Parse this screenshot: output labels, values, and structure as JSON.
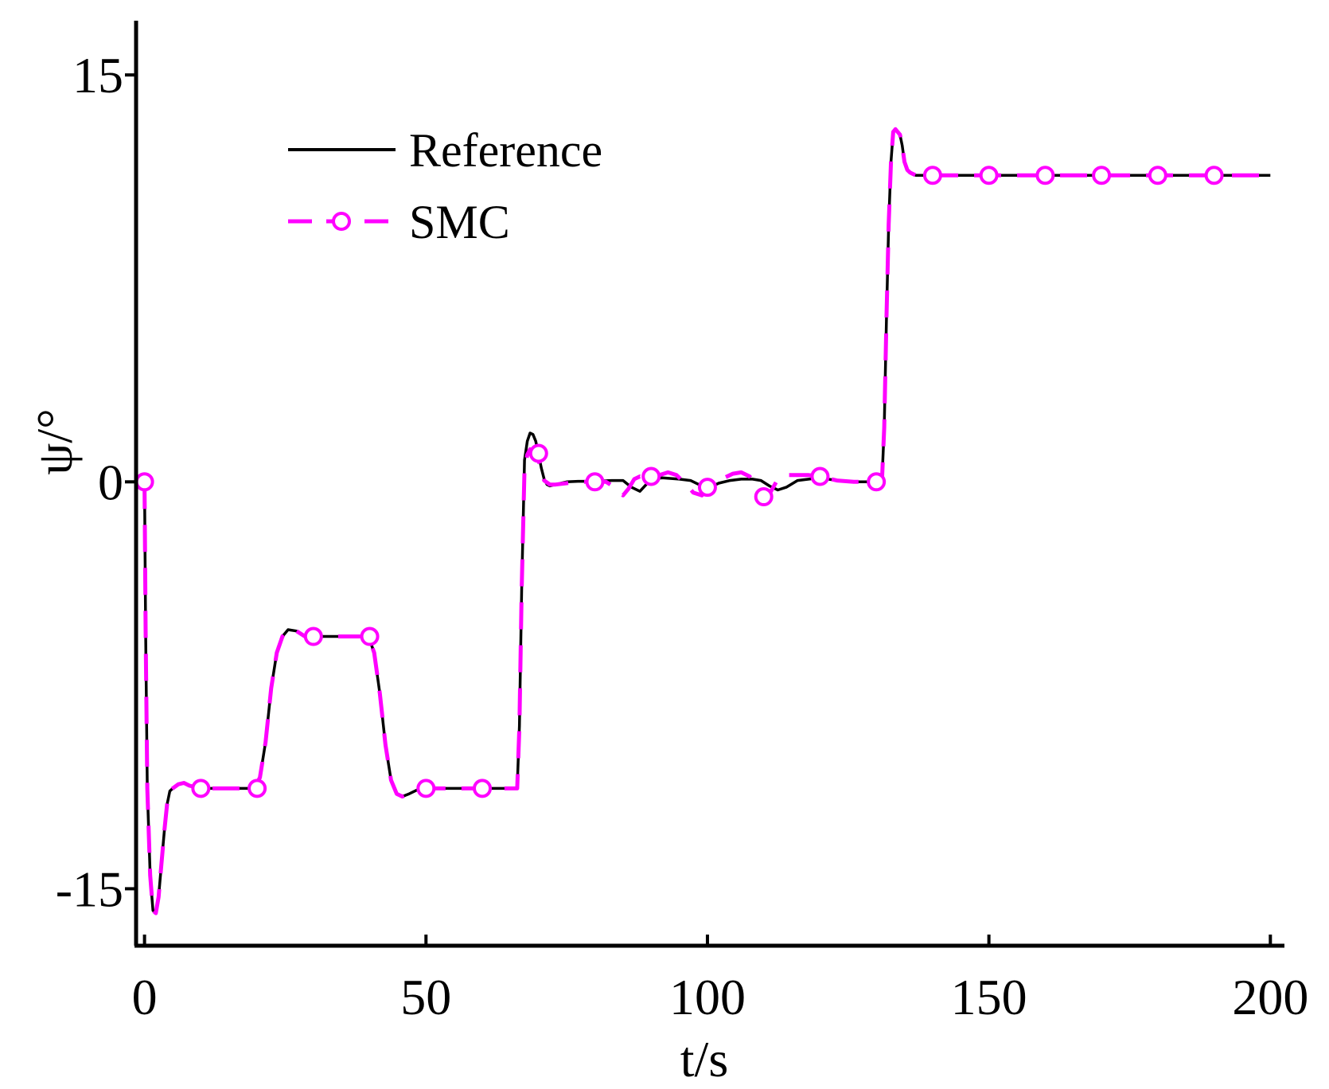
{
  "chart_data": {
    "type": "line",
    "xlabel": "t/s",
    "ylabel": "ψ/°",
    "xlim": [
      -1.5,
      202.5
    ],
    "ylim": [
      -17.1,
      17.0
    ],
    "xticks": [
      0,
      50,
      100,
      150,
      200
    ],
    "xtick_labels": [
      "0",
      "50",
      "100",
      "150",
      "200"
    ],
    "yticks": [
      -15,
      0,
      15
    ],
    "ytick_labels": [
      "-15",
      "0",
      "15"
    ],
    "grid": false,
    "legend_position": "top-left",
    "series": [
      {
        "name": "Reference",
        "color": "#000000",
        "line_style": "solid",
        "x": [
          0,
          0.2,
          0.5,
          1.0,
          1.5,
          2.0,
          2.5,
          3.0,
          3.5,
          4.0,
          4.5,
          5.0,
          6.0,
          7.0,
          8.0,
          9.0,
          10,
          15,
          19.5,
          20.5,
          21.5,
          22.5,
          23.5,
          24.5,
          25.5,
          27,
          28.5,
          30,
          35,
          39.8,
          40.8,
          41.8,
          42.8,
          43.8,
          44.8,
          45.8,
          47,
          48.5,
          50,
          55,
          60,
          64,
          66.2,
          66.6,
          67.0,
          67.5,
          68.0,
          68.5,
          69.0,
          69.5,
          70.0,
          70.5,
          71.0,
          71.5,
          72.0,
          73.0,
          74.0,
          75.0,
          77.0,
          80.0,
          83.0,
          85.0,
          86.5,
          88.0,
          90.0,
          92.0,
          95.0,
          97.0,
          99.0,
          100.5,
          102.0,
          104.0,
          106.0,
          108.0,
          109.5,
          111.0,
          112.5,
          114.0,
          116.0,
          118.0,
          120.0,
          123.0,
          126.0,
          129.0,
          130.5,
          131.0,
          131.4,
          131.8,
          132.2,
          132.6,
          133.0,
          133.4,
          133.8,
          134.2,
          134.6,
          135.0,
          135.5,
          136.0,
          136.5,
          137.0,
          137.5,
          138.0,
          139.0,
          140.0,
          145.0,
          150,
          160,
          170,
          180,
          190,
          200
        ],
        "y": [
          0,
          -5.5,
          -11.3,
          -14.5,
          -15.8,
          -15.9,
          -15.3,
          -14.1,
          -12.9,
          -11.9,
          -11.4,
          -11.3,
          -11.15,
          -11.1,
          -11.2,
          -11.25,
          -11.3,
          -11.3,
          -11.3,
          -10.9,
          -9.6,
          -7.6,
          -6.3,
          -5.7,
          -5.45,
          -5.5,
          -5.7,
          -5.7,
          -5.7,
          -5.7,
          -6.3,
          -7.8,
          -9.7,
          -11.0,
          -11.5,
          -11.6,
          -11.5,
          -11.35,
          -11.3,
          -11.3,
          -11.3,
          -11.3,
          -11.3,
          -9.0,
          -4.0,
          0.8,
          1.5,
          1.8,
          1.75,
          1.5,
          1.0,
          0.5,
          0.1,
          -0.1,
          -0.15,
          -0.1,
          -0.05,
          0,
          0.02,
          0.02,
          0.05,
          0.05,
          -0.2,
          -0.35,
          0.1,
          0.15,
          0.1,
          0.05,
          -0.15,
          -0.2,
          -0.05,
          0.05,
          0.1,
          0.1,
          0.05,
          -0.15,
          -0.3,
          -0.2,
          0.05,
          0.1,
          0.15,
          0.05,
          0,
          0,
          0,
          0,
          2.0,
          6.0,
          9.5,
          11.8,
          12.9,
          13.0,
          12.9,
          12.8,
          12.4,
          11.8,
          11.5,
          11.4,
          11.35,
          11.3,
          11.3,
          11.3,
          11.3,
          11.3,
          11.3,
          11.3,
          11.3,
          11.3,
          11.3,
          11.3,
          11.3
        ]
      },
      {
        "name": "SMC",
        "color": "#ff00ff",
        "line_style": "dashed",
        "marker": "circle-open",
        "x": [
          0,
          0.2,
          0.5,
          1.0,
          1.5,
          2.0,
          2.5,
          3.0,
          3.5,
          4.0,
          4.5,
          5.0,
          6.0,
          7.0,
          8.0,
          9.0,
          10,
          15,
          19.5,
          20.5,
          21.5,
          22.5,
          23.5,
          24.5,
          25.5,
          27,
          28.5,
          30,
          35,
          39.8,
          40.8,
          41.8,
          42.8,
          43.8,
          44.8,
          45.8,
          47,
          48.5,
          50,
          55,
          60,
          64,
          66.2,
          66.6,
          67.0,
          67.5,
          68.0,
          68.5,
          69.0,
          69.5,
          70.0,
          70.5,
          71.0,
          72.0,
          73.0,
          75.0,
          77.0,
          80.0,
          82.0,
          83.5,
          85.0,
          86.0,
          87.0,
          88.0,
          89.0,
          90.0,
          91.5,
          93.0,
          94.5,
          96.0,
          97.5,
          99.0,
          100.0,
          101.5,
          103.0,
          104.5,
          106.0,
          107.5,
          109.0,
          110.0,
          111.0,
          112.5,
          114.0,
          116.0,
          118.0,
          120.0,
          123.0,
          126.0,
          129.0,
          130.5,
          131.0,
          131.4,
          131.8,
          132.2,
          132.6,
          133.0,
          133.4,
          133.8,
          134.2,
          134.6,
          135.0,
          135.5,
          136.0,
          136.5,
          137.0,
          137.5,
          138.0,
          139.0,
          140.0,
          145.0,
          150,
          160,
          170,
          180,
          190,
          200
        ],
        "y": [
          0,
          -5.5,
          -11.3,
          -14.5,
          -15.8,
          -15.9,
          -15.3,
          -14.1,
          -12.9,
          -11.9,
          -11.4,
          -11.3,
          -11.15,
          -11.1,
          -11.2,
          -11.25,
          -11.3,
          -11.3,
          -11.3,
          -10.9,
          -9.6,
          -7.6,
          -6.3,
          -5.7,
          -5.45,
          -5.5,
          -5.7,
          -5.7,
          -5.7,
          -5.7,
          -6.3,
          -7.8,
          -9.7,
          -11.0,
          -11.5,
          -11.6,
          -11.5,
          -11.35,
          -11.3,
          -11.3,
          -11.3,
          -11.3,
          -11.3,
          -9.0,
          -4.0,
          0.5,
          1.0,
          1.2,
          1.15,
          1.05,
          0.8,
          0.4,
          0.05,
          -0.1,
          -0.1,
          -0.05,
          0,
          0,
          0,
          -0.2,
          -0.5,
          -0.25,
          0.1,
          0.2,
          0.15,
          0.2,
          0.25,
          0.35,
          0.25,
          -0.05,
          -0.4,
          -0.5,
          -0.2,
          -0.05,
          0.15,
          0.3,
          0.35,
          0.2,
          -0.25,
          -0.55,
          -0.45,
          0.1,
          0.25,
          0.25,
          0.25,
          0.2,
          0.05,
          0,
          0,
          0,
          0,
          2.0,
          6.0,
          9.5,
          11.8,
          12.9,
          13.0,
          12.9,
          12.8,
          12.4,
          11.8,
          11.5,
          11.4,
          11.35,
          11.3,
          11.3,
          11.3,
          11.3,
          11.3,
          11.3,
          11.3,
          11.3,
          11.3,
          11.3,
          11.3,
          11.3
        ],
        "marker_x": [
          0,
          10,
          20,
          30,
          40,
          50,
          60,
          70,
          80,
          90,
          100,
          110,
          120,
          130,
          140,
          150,
          160,
          170,
          180,
          190
        ],
        "marker_y": [
          0,
          -11.3,
          -11.3,
          -5.7,
          -5.7,
          -11.3,
          -11.3,
          1.05,
          0,
          0.2,
          -0.2,
          -0.55,
          0.2,
          0,
          11.3,
          11.3,
          11.3,
          11.3,
          11.3,
          11.3
        ]
      }
    ]
  }
}
